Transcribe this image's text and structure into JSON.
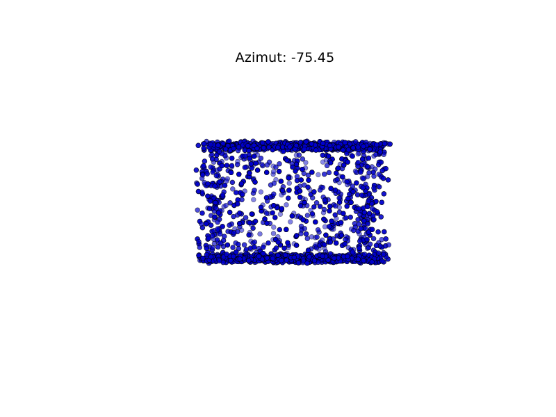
{
  "chart_data": {
    "type": "scatter",
    "projection": "3d",
    "title": "Azimut: -75.45",
    "axes_visible": false,
    "grid": false,
    "legend": "none",
    "shape": "cylinder",
    "point_count": 3000,
    "point_color": "#0000cc",
    "edge_color": "#000000",
    "x_range": [
      -1.0,
      1.0
    ],
    "y_range": [
      -1.0,
      1.0
    ],
    "z_range": [
      -1.0,
      1.0
    ]
  }
}
